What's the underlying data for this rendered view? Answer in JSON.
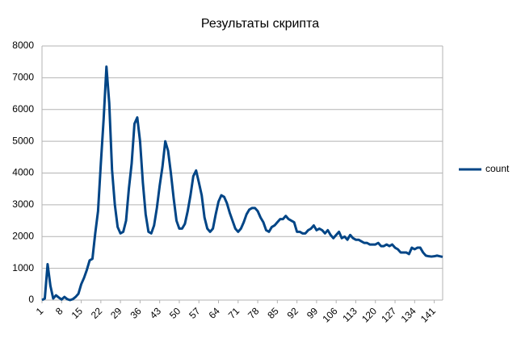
{
  "chart_data": {
    "type": "line",
    "title": "Результаты скрипта",
    "x": [
      1,
      2,
      3,
      4,
      5,
      6,
      7,
      8,
      9,
      10,
      11,
      12,
      13,
      14,
      15,
      16,
      17,
      18,
      19,
      20,
      21,
      22,
      23,
      24,
      25,
      26,
      27,
      28,
      29,
      30,
      31,
      32,
      33,
      34,
      35,
      36,
      37,
      38,
      39,
      40,
      41,
      42,
      43,
      44,
      45,
      46,
      47,
      48,
      49,
      50,
      51,
      52,
      53,
      54,
      55,
      56,
      57,
      58,
      59,
      60,
      61,
      62,
      63,
      64,
      65,
      66,
      67,
      68,
      69,
      70,
      71,
      72,
      73,
      74,
      75,
      76,
      77,
      78,
      79,
      80,
      81,
      82,
      83,
      84,
      85,
      86,
      87,
      88,
      89,
      90,
      91,
      92,
      93,
      94,
      95,
      96,
      97,
      98,
      99,
      100,
      101,
      102,
      103,
      104,
      105,
      106,
      107,
      108,
      109,
      110,
      111,
      112,
      113,
      114,
      115,
      116,
      117,
      118,
      119,
      120,
      121,
      122,
      123,
      124,
      125,
      126,
      127,
      128,
      129,
      130,
      131,
      132,
      133,
      134,
      135,
      136,
      137,
      138,
      139,
      140,
      141,
      142,
      143,
      144
    ],
    "series": [
      {
        "name": "count",
        "color": "#004586",
        "values": [
          0,
          50,
          1130,
          450,
          50,
          150,
          80,
          20,
          100,
          30,
          0,
          30,
          100,
          200,
          500,
          700,
          950,
          1250,
          1300,
          2100,
          2800,
          4300,
          5700,
          7350,
          6200,
          4100,
          3000,
          2300,
          2100,
          2150,
          2500,
          3500,
          4300,
          5550,
          5750,
          5000,
          3700,
          2700,
          2150,
          2100,
          2350,
          2900,
          3600,
          4200,
          5000,
          4700,
          4000,
          3200,
          2500,
          2250,
          2250,
          2400,
          2800,
          3300,
          3900,
          4080,
          3700,
          3300,
          2600,
          2250,
          2150,
          2250,
          2700,
          3100,
          3300,
          3250,
          3050,
          2750,
          2500,
          2250,
          2150,
          2250,
          2450,
          2700,
          2850,
          2900,
          2900,
          2800,
          2600,
          2450,
          2200,
          2150,
          2300,
          2350,
          2450,
          2550,
          2550,
          2650,
          2550,
          2500,
          2450,
          2150,
          2150,
          2100,
          2100,
          2200,
          2250,
          2350,
          2200,
          2250,
          2200,
          2100,
          2200,
          2050,
          1950,
          2050,
          2150,
          1950,
          2000,
          1900,
          2050,
          1950,
          1900,
          1900,
          1850,
          1800,
          1800,
          1750,
          1750,
          1750,
          1800,
          1700,
          1700,
          1750,
          1700,
          1750,
          1650,
          1600,
          1500,
          1500,
          1500,
          1450,
          1650,
          1600,
          1650,
          1650,
          1500,
          1400,
          1380,
          1370,
          1380,
          1400,
          1380,
          1360
        ]
      }
    ],
    "xlim": [
      1,
      144
    ],
    "xticks": [
      1,
      8,
      15,
      22,
      29,
      36,
      43,
      50,
      57,
      64,
      71,
      78,
      85,
      92,
      99,
      106,
      113,
      120,
      127,
      134,
      141
    ],
    "ylim": [
      0,
      8000
    ],
    "yticks": [
      0,
      1000,
      2000,
      3000,
      4000,
      5000,
      6000,
      7000,
      8000
    ],
    "grid": true
  }
}
